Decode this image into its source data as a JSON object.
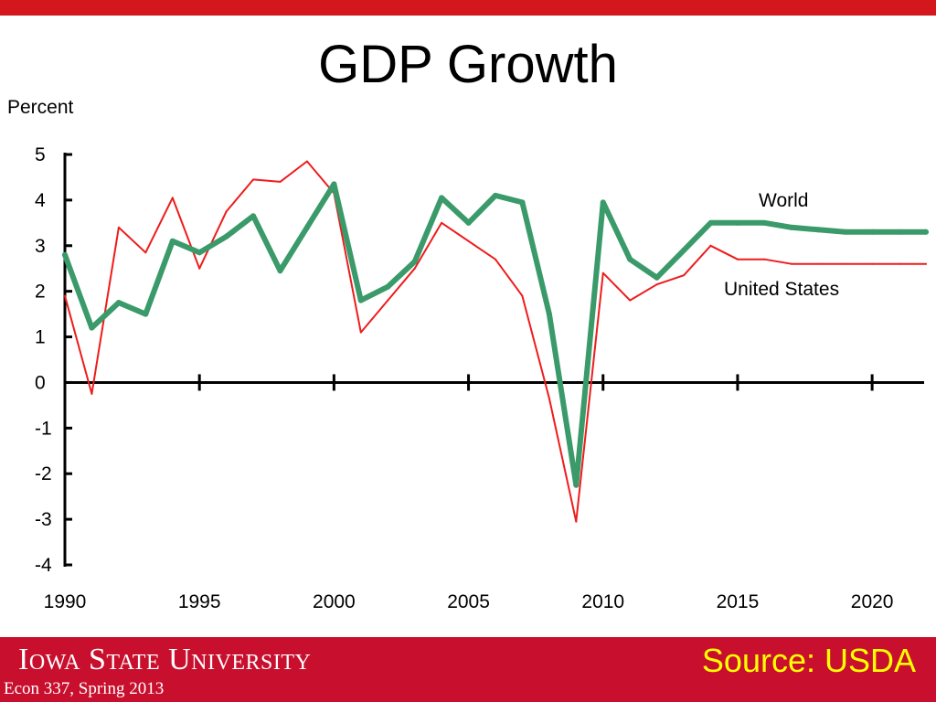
{
  "slide": {
    "title": "GDP Growth"
  },
  "footer": {
    "university": "Iowa State University",
    "course": "Econ 337, Spring 2013",
    "source": "Source: USDA"
  },
  "colors": {
    "top_bar": "#d4171d",
    "footer_bg": "#c8102e",
    "source_text": "#ffff00",
    "world_line": "#3a9a6a",
    "us_line": "#ee1c1c"
  },
  "chart_data": {
    "type": "line",
    "ylabel": "Percent",
    "xlabel": "",
    "ylim": [
      -4,
      5
    ],
    "xlim": [
      1990,
      2022
    ],
    "yticks": [
      5,
      4,
      3,
      2,
      1,
      0,
      -1,
      -2,
      -3,
      -4
    ],
    "xticks": [
      1990,
      1995,
      2000,
      2005,
      2010,
      2015,
      2020
    ],
    "grid": false,
    "x": [
      1990,
      1991,
      1992,
      1993,
      1994,
      1995,
      1996,
      1997,
      1998,
      1999,
      2000,
      2001,
      2002,
      2003,
      2004,
      2005,
      2006,
      2007,
      2008,
      2009,
      2010,
      2011,
      2012,
      2013,
      2014,
      2015,
      2016,
      2017,
      2018,
      2019,
      2020,
      2021,
      2022
    ],
    "series": [
      {
        "name": "World",
        "color": "#3a9a6a",
        "values": [
          2.8,
          1.2,
          1.75,
          1.5,
          3.1,
          2.85,
          3.2,
          3.65,
          2.45,
          3.4,
          4.35,
          1.8,
          2.1,
          2.65,
          4.05,
          3.5,
          4.1,
          3.95,
          1.5,
          -2.25,
          3.95,
          2.7,
          2.3,
          2.9,
          3.5,
          3.5,
          3.5,
          3.4,
          3.35,
          3.3,
          3.3,
          3.3,
          3.3
        ]
      },
      {
        "name": "United States",
        "color": "#ee1c1c",
        "values": [
          1.9,
          -0.25,
          3.4,
          2.85,
          4.05,
          2.5,
          3.75,
          4.45,
          4.4,
          4.85,
          4.15,
          1.1,
          1.8,
          2.5,
          3.5,
          3.1,
          2.7,
          1.9,
          -0.35,
          -3.05,
          2.4,
          1.8,
          2.15,
          2.35,
          3.0,
          2.7,
          2.7,
          2.6,
          2.6,
          2.6,
          2.6,
          2.6,
          2.6
        ]
      }
    ]
  }
}
